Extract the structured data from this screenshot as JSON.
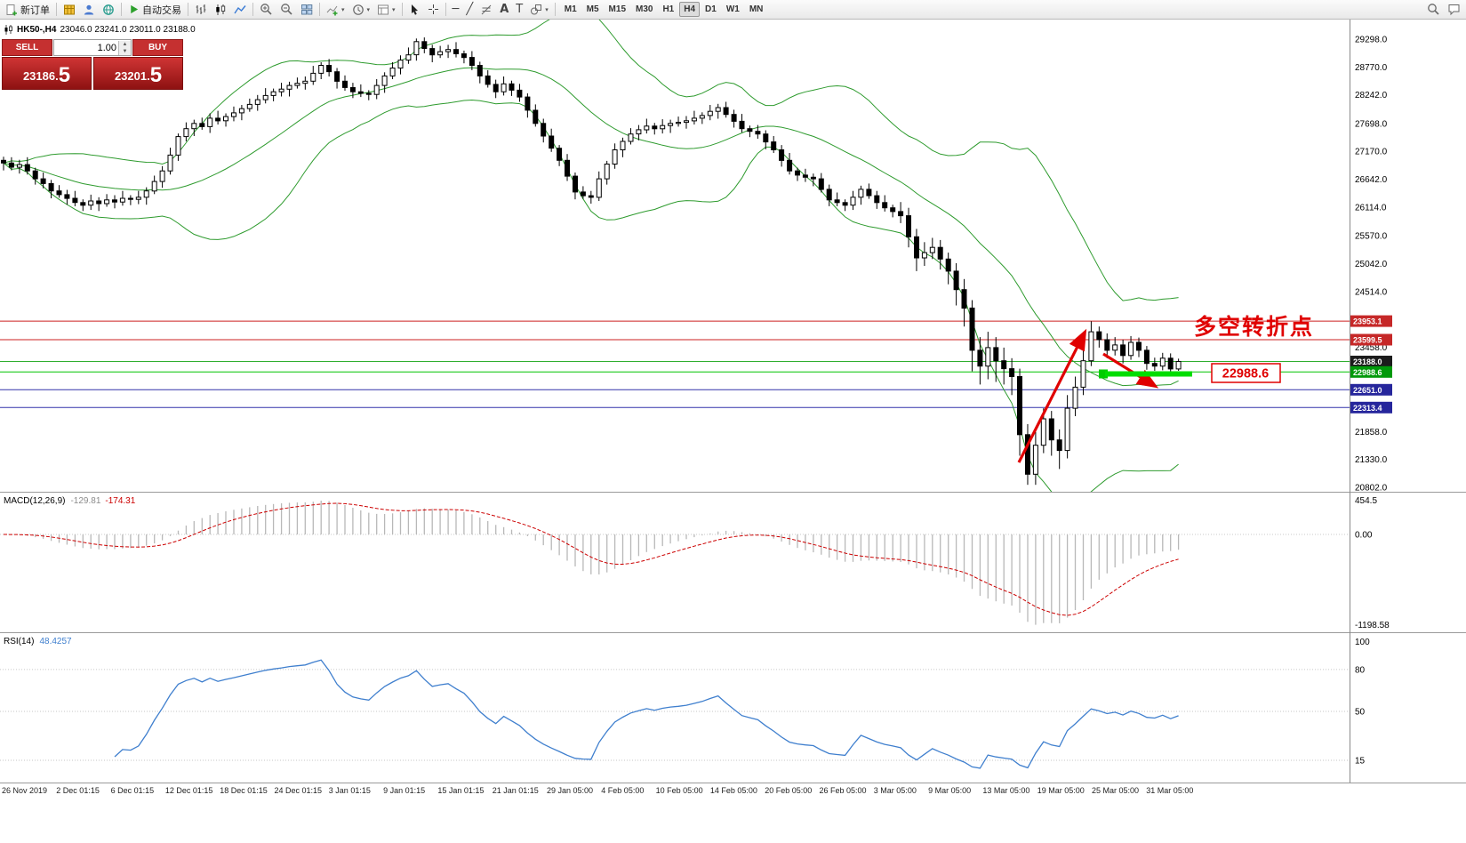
{
  "toolbar": {
    "new_order_label": "新订单",
    "auto_trading_label": "自动交易",
    "timeframes": [
      "M1",
      "M5",
      "M15",
      "M30",
      "H1",
      "H4",
      "D1",
      "W1",
      "MN"
    ],
    "active_timeframe": "H4"
  },
  "quote": {
    "symbol_tf": "HK50-,H4",
    "ohlc_line": "23046.0 23241.0 23011.0 23188.0",
    "sell_label": "SELL",
    "buy_label": "BUY",
    "volume": "1.00",
    "sell_price_main": "23186.",
    "sell_price_big": "5",
    "buy_price_main": "23201.",
    "buy_price_big": "5"
  },
  "macd_panel": {
    "name": "MACD(12,26,9)",
    "main_value": "-129.81",
    "signal_value": "-174.31",
    "axis_labels": [
      "454.5",
      "0.00",
      "-1198.58"
    ]
  },
  "rsi_panel": {
    "name": "RSI(14)",
    "value": "48.4257",
    "axis_labels": [
      "100",
      "80",
      "50",
      "15"
    ]
  },
  "annotations": {
    "turning_point_text": "多空转折点",
    "level_label": "22988.6"
  },
  "price_axis": {
    "ticks": [
      "29298.0",
      "28770.0",
      "28242.0",
      "27698.0",
      "27170.0",
      "26642.0",
      "26114.0",
      "25570.0",
      "25042.0",
      "24514.0",
      "23458.0",
      "21858.0",
      "21330.0",
      "20802.0"
    ]
  },
  "chart_data": {
    "type": "candlestick",
    "symbol": "HK50-",
    "timeframe": "H4",
    "price_range": [
      20802,
      29298
    ],
    "levels": [
      {
        "value": 23953.1,
        "label": "23953.1",
        "bg": "#c62828",
        "line_color": "#cc2222"
      },
      {
        "value": 23599.5,
        "label": "23599.5",
        "bg": "#c62828",
        "line_color": "#cc2222"
      },
      {
        "value": 23188.0,
        "label": "23188.0",
        "bg": "#1c1c1c",
        "line_color": "#2fae2f"
      },
      {
        "value": 22988.6,
        "label": "22988.6",
        "bg": "#00990a",
        "line_color": "#00c400"
      },
      {
        "value": 22651.0,
        "label": "22651.0",
        "bg": "#26269c",
        "line_color": "#3333aa"
      },
      {
        "value": 22313.4,
        "label": "22313.4",
        "bg": "#26269c",
        "line_color": "#3333aa"
      }
    ],
    "time_labels": [
      "26 Nov 2019",
      "2 Dec 01:15",
      "6 Dec 01:15",
      "12 Dec 01:15",
      "18 Dec 01:15",
      "24 Dec 01:15",
      "3 Jan 01:15",
      "9 Jan 01:15",
      "15 Jan 01:15",
      "21 Jan 01:15",
      "29 Jan 05:00",
      "4 Feb 05:00",
      "10 Feb 05:00",
      "14 Feb 05:00",
      "20 Feb 05:00",
      "26 Feb 05:00",
      "3 Mar 05:00",
      "9 Mar 05:00",
      "13 Mar 05:00",
      "19 Mar 05:00",
      "25 Mar 05:00",
      "31 Mar 05:00"
    ],
    "indicators": {
      "bollinger": {
        "period": 20,
        "deviation": 2
      },
      "macd": {
        "fast": 12,
        "slow": 26,
        "signal": 9
      },
      "rsi": {
        "period": 14
      }
    },
    "ohlc": [
      [
        27000,
        27070,
        26810,
        26950
      ],
      [
        26950,
        27060,
        26810,
        26870
      ],
      [
        26870,
        27010,
        26750,
        26920
      ],
      [
        26920,
        27060,
        26730,
        26800
      ],
      [
        26800,
        26860,
        26540,
        26650
      ],
      [
        26650,
        26770,
        26470,
        26560
      ],
      [
        26560,
        26630,
        26280,
        26420
      ],
      [
        26420,
        26530,
        26290,
        26350
      ],
      [
        26350,
        26440,
        26160,
        26280
      ],
      [
        26280,
        26420,
        26130,
        26200
      ],
      [
        26200,
        26260,
        26040,
        26150
      ],
      [
        26150,
        26350,
        26060,
        26230
      ],
      [
        26230,
        26300,
        26040,
        26180
      ],
      [
        26180,
        26360,
        26120,
        26250
      ],
      [
        26250,
        26340,
        26090,
        26210
      ],
      [
        26210,
        26420,
        26140,
        26280
      ],
      [
        26280,
        26340,
        26150,
        26260
      ],
      [
        26260,
        26420,
        26170,
        26300
      ],
      [
        26300,
        26490,
        26160,
        26420
      ],
      [
        26420,
        26710,
        26360,
        26600
      ],
      [
        26600,
        26890,
        26480,
        26800
      ],
      [
        26800,
        27240,
        26730,
        27100
      ],
      [
        27100,
        27510,
        26990,
        27450
      ],
      [
        27450,
        27720,
        27360,
        27600
      ],
      [
        27600,
        27770,
        27460,
        27700
      ],
      [
        27700,
        27810,
        27580,
        27640
      ],
      [
        27640,
        27890,
        27520,
        27800
      ],
      [
        27800,
        27940,
        27680,
        27750
      ],
      [
        27750,
        27890,
        27640,
        27830
      ],
      [
        27830,
        28020,
        27740,
        27900
      ],
      [
        27900,
        28050,
        27760,
        27980
      ],
      [
        27980,
        28170,
        27920,
        28060
      ],
      [
        28060,
        28240,
        27940,
        28150
      ],
      [
        28150,
        28370,
        28080,
        28230
      ],
      [
        28230,
        28360,
        28120,
        28300
      ],
      [
        28300,
        28470,
        28210,
        28350
      ],
      [
        28350,
        28490,
        28210,
        28420
      ],
      [
        28420,
        28570,
        28360,
        28460
      ],
      [
        28460,
        28590,
        28340,
        28500
      ],
      [
        28500,
        28790,
        28430,
        28650
      ],
      [
        28650,
        28860,
        28540,
        28800
      ],
      [
        28800,
        28920,
        28590,
        28680
      ],
      [
        28680,
        28750,
        28360,
        28500
      ],
      [
        28500,
        28610,
        28320,
        28380
      ],
      [
        28380,
        28470,
        28180,
        28300
      ],
      [
        28300,
        28440,
        28200,
        28270
      ],
      [
        28270,
        28330,
        28140,
        28250
      ],
      [
        28250,
        28540,
        28160,
        28420
      ],
      [
        28420,
        28670,
        28280,
        28600
      ],
      [
        28600,
        28860,
        28540,
        28750
      ],
      [
        28750,
        28990,
        28630,
        28900
      ],
      [
        28900,
        29140,
        28830,
        29000
      ],
      [
        29000,
        29310,
        28890,
        29250
      ],
      [
        29250,
        29330,
        29030,
        29120
      ],
      [
        29120,
        29190,
        28860,
        29000
      ],
      [
        29000,
        29170,
        28940,
        29060
      ],
      [
        29060,
        29190,
        28940,
        29100
      ],
      [
        29100,
        29240,
        28950,
        29020
      ],
      [
        29020,
        29080,
        28840,
        28950
      ],
      [
        28950,
        29070,
        28710,
        28800
      ],
      [
        28800,
        28870,
        28460,
        28600
      ],
      [
        28600,
        28710,
        28380,
        28440
      ],
      [
        28440,
        28530,
        28180,
        28300
      ],
      [
        28300,
        28590,
        28230,
        28450
      ],
      [
        28450,
        28510,
        28220,
        28330
      ],
      [
        28330,
        28450,
        28110,
        28200
      ],
      [
        28200,
        28270,
        27810,
        27950
      ],
      [
        27950,
        28060,
        27640,
        27700
      ],
      [
        27700,
        27790,
        27340,
        27460
      ],
      [
        27460,
        27600,
        27160,
        27230
      ],
      [
        27230,
        27290,
        26890,
        27000
      ],
      [
        27000,
        27120,
        26610,
        26700
      ],
      [
        26700,
        26770,
        26260,
        26400
      ],
      [
        26400,
        26510,
        26270,
        26330
      ],
      [
        26330,
        26420,
        26180,
        26300
      ],
      [
        26300,
        26790,
        26230,
        26650
      ],
      [
        26650,
        26990,
        26540,
        26930
      ],
      [
        26930,
        27320,
        26840,
        27200
      ],
      [
        27200,
        27430,
        27060,
        27360
      ],
      [
        27360,
        27610,
        27300,
        27500
      ],
      [
        27500,
        27670,
        27380,
        27580
      ],
      [
        27580,
        27790,
        27510,
        27650
      ],
      [
        27650,
        27710,
        27490,
        27600
      ],
      [
        27600,
        27780,
        27510,
        27660
      ],
      [
        27660,
        27770,
        27520,
        27700
      ],
      [
        27700,
        27830,
        27640,
        27720
      ],
      [
        27720,
        27840,
        27600,
        27750
      ],
      [
        27750,
        27940,
        27680,
        27800
      ],
      [
        27800,
        27910,
        27690,
        27850
      ],
      [
        27850,
        28050,
        27760,
        27930
      ],
      [
        27930,
        28070,
        27790,
        28000
      ],
      [
        28000,
        28110,
        27810,
        27870
      ],
      [
        27870,
        27960,
        27620,
        27740
      ],
      [
        27740,
        27880,
        27530,
        27600
      ],
      [
        27600,
        27660,
        27440,
        27550
      ],
      [
        27550,
        27670,
        27410,
        27500
      ],
      [
        27500,
        27570,
        27210,
        27350
      ],
      [
        27350,
        27460,
        27140,
        27200
      ],
      [
        27200,
        27290,
        26880,
        27000
      ],
      [
        27000,
        27140,
        26730,
        26800
      ],
      [
        26800,
        26860,
        26610,
        26720
      ],
      [
        26720,
        26840,
        26590,
        26680
      ],
      [
        26680,
        26750,
        26510,
        26650
      ],
      [
        26650,
        26760,
        26390,
        26450
      ],
      [
        26450,
        26540,
        26130,
        26250
      ],
      [
        26250,
        26390,
        26130,
        26200
      ],
      [
        26200,
        26260,
        26040,
        26150
      ],
      [
        26150,
        26420,
        26060,
        26300
      ],
      [
        26300,
        26520,
        26160,
        26450
      ],
      [
        26450,
        26560,
        26270,
        26330
      ],
      [
        26330,
        26420,
        26080,
        26200
      ],
      [
        26200,
        26340,
        26030,
        26100
      ],
      [
        26100,
        26160,
        25920,
        26030
      ],
      [
        26030,
        26210,
        25810,
        25950
      ],
      [
        25950,
        26100,
        25350,
        25550
      ],
      [
        25550,
        25700,
        24900,
        25150
      ],
      [
        25150,
        25450,
        25000,
        25250
      ],
      [
        25250,
        25530,
        25130,
        25350
      ],
      [
        25350,
        25490,
        24930,
        25130
      ],
      [
        25130,
        25250,
        24650,
        24900
      ],
      [
        24900,
        25050,
        24250,
        24550
      ],
      [
        24550,
        24750,
        23850,
        24200
      ],
      [
        24200,
        24350,
        23000,
        23400
      ],
      [
        23400,
        23650,
        22750,
        23100
      ],
      [
        23100,
        23750,
        22850,
        23450
      ],
      [
        23450,
        23650,
        22800,
        23200
      ],
      [
        23200,
        23450,
        22750,
        23050
      ],
      [
        23050,
        23250,
        22550,
        22900
      ],
      [
        22900,
        23050,
        21400,
        21800
      ],
      [
        21800,
        22000,
        20850,
        21050
      ],
      [
        21050,
        21850,
        20850,
        21600
      ],
      [
        21600,
        22300,
        21450,
        22100
      ],
      [
        22100,
        22250,
        21400,
        21700
      ],
      [
        21700,
        21900,
        21150,
        21500
      ],
      [
        21500,
        22550,
        21350,
        22300
      ],
      [
        22300,
        22900,
        22150,
        22700
      ],
      [
        22700,
        23450,
        22550,
        23200
      ],
      [
        23200,
        23950,
        23100,
        23750
      ],
      [
        23750,
        23850,
        23450,
        23600
      ],
      [
        23600,
        23720,
        23250,
        23400
      ],
      [
        23400,
        23650,
        23300,
        23500
      ],
      [
        23500,
        23600,
        23150,
        23300
      ],
      [
        23300,
        23670,
        23220,
        23550
      ],
      [
        23550,
        23640,
        23270,
        23400
      ],
      [
        23400,
        23480,
        23030,
        23150
      ],
      [
        23150,
        23260,
        23010,
        23100
      ],
      [
        23100,
        23350,
        23020,
        23250
      ],
      [
        23250,
        23340,
        23000,
        23046
      ],
      [
        23046,
        23241,
        23011,
        23188
      ]
    ]
  }
}
